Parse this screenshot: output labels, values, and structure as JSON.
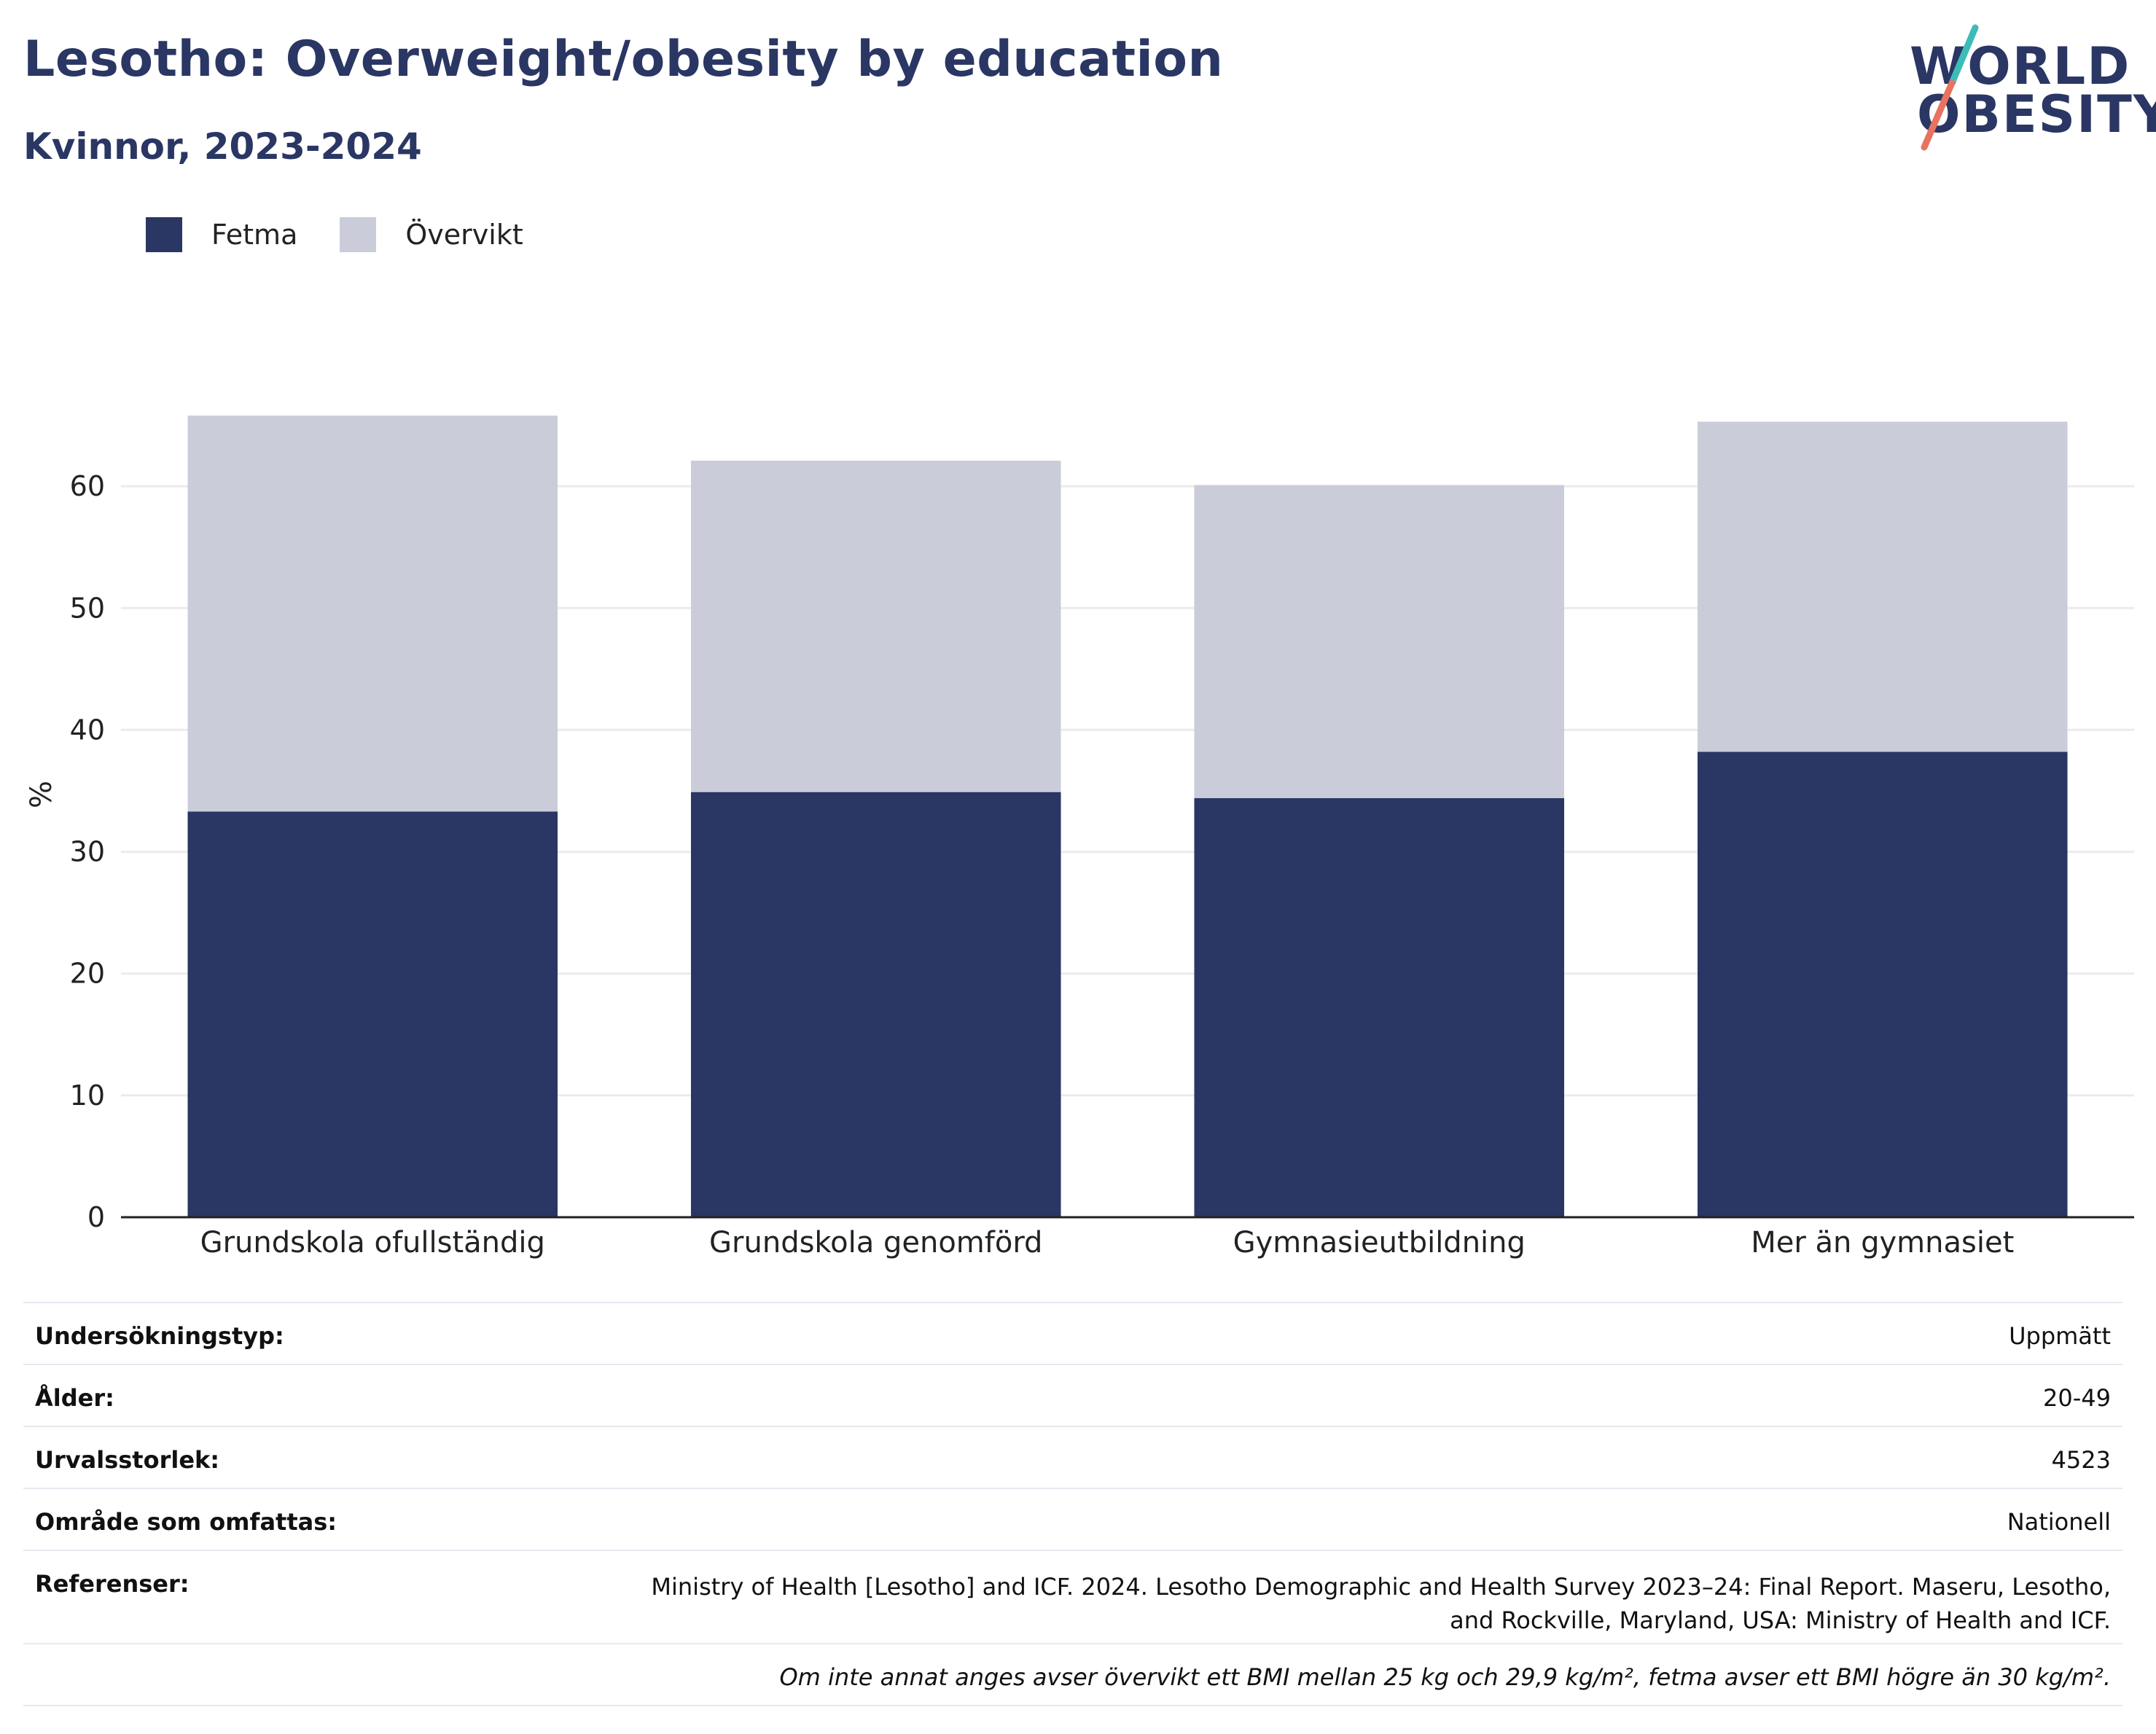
{
  "header": {
    "title": "Lesotho: Overweight/obesity by education",
    "subtitle": "Kvinnor, 2023-2024"
  },
  "logo": {
    "line1": "WORLD",
    "line2": "OBESITY"
  },
  "colors": {
    "fetma": "#2a3663",
    "overvikt": "#cacdd9",
    "accent_teal": "#3cbcb8",
    "accent_coral": "#e8735f",
    "grid": "#ebebeb",
    "axis": "#222222"
  },
  "legend": [
    {
      "label": "Fetma",
      "color": "#2a3663"
    },
    {
      "label": "Övervikt",
      "color": "#cacdd9"
    }
  ],
  "chart_data": {
    "type": "bar",
    "stacked": true,
    "categories": [
      "Grundskola ofullständig",
      "Grundskola genomförd",
      "Gymnasieutbildning",
      "Mer än gymnasiet"
    ],
    "series": [
      {
        "name": "Fetma",
        "values": [
          33.3,
          34.9,
          34.4,
          38.2
        ]
      },
      {
        "name": "Övervikt",
        "values": [
          32.5,
          27.2,
          25.7,
          27.1
        ]
      }
    ],
    "ylabel": "%",
    "ylim": [
      0,
      70
    ],
    "yticks": [
      0,
      10,
      20,
      30,
      40,
      50,
      60
    ],
    "grid": true,
    "legend_position": "top-left"
  },
  "info": {
    "rows": [
      {
        "key": "Undersökningstyp:",
        "value": "Uppmätt"
      },
      {
        "key": "Ålder:",
        "value": "20-49"
      },
      {
        "key": "Urvalsstorlek:",
        "value": "4523"
      },
      {
        "key": "Område som omfattas:",
        "value": "Nationell"
      }
    ],
    "references_key": "Referenser:",
    "references_value": "Ministry of Health [Lesotho] and ICF. 2024. Lesotho Demographic and Health Survey 2023–24: Final Report. Maseru, Lesotho, and Rockville, Maryland, USA: Ministry of Health and ICF.",
    "note": "Om inte annat anges avser övervikt ett BMI mellan 25 kg och 29,9 kg/m², fetma avser ett BMI högre än 30 kg/m²."
  }
}
